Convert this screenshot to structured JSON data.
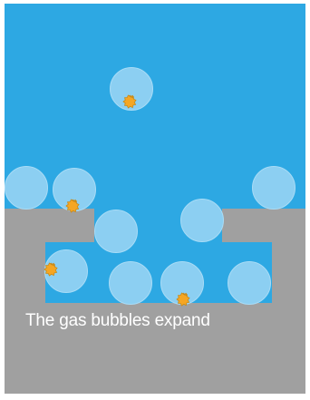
{
  "caption": "The gas bubbles expand",
  "colors": {
    "water": "#2da8e3",
    "rock": "#a0a0a0",
    "bubble": "#8ccff2",
    "bubble_stroke": "#a9dcf6",
    "grain": "#f5a623",
    "grain_stroke": "#c78a1a",
    "caption": "#ffffff"
  }
}
